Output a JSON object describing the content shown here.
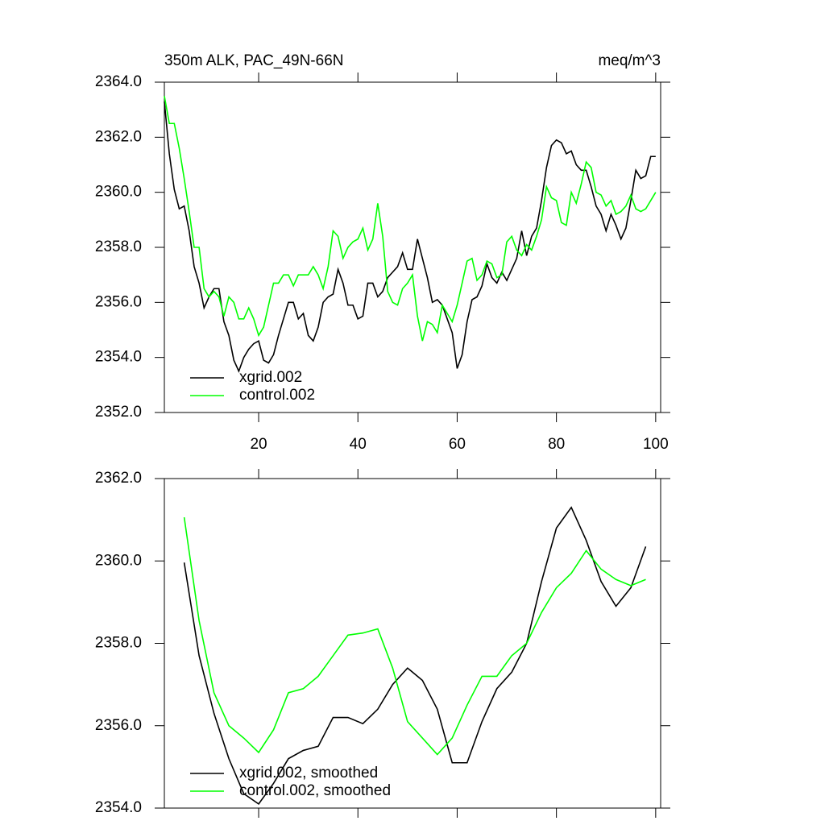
{
  "chart_data": [
    {
      "type": "line",
      "title": "350m ALK, PAC_49N-66N",
      "title_right": "meq/m^3",
      "x": [
        1,
        2,
        3,
        4,
        5,
        6,
        7,
        8,
        9,
        10,
        11,
        12,
        13,
        14,
        15,
        16,
        17,
        18,
        19,
        20,
        21,
        22,
        23,
        24,
        25,
        26,
        27,
        28,
        29,
        30,
        31,
        32,
        33,
        34,
        35,
        36,
        37,
        38,
        39,
        40,
        41,
        42,
        43,
        44,
        45,
        46,
        47,
        48,
        49,
        50,
        51,
        52,
        53,
        54,
        55,
        56,
        57,
        58,
        59,
        60,
        61,
        62,
        63,
        64,
        65,
        66,
        67,
        68,
        69,
        70,
        71,
        72,
        73,
        74,
        75,
        76,
        77,
        78,
        79,
        80,
        81,
        82,
        83,
        84,
        85,
        86,
        87,
        88,
        89,
        90,
        91,
        92,
        93,
        94,
        95,
        96,
        97,
        98,
        99,
        100
      ],
      "series": [
        {
          "name": "xgrid.002",
          "color": "#000000",
          "values": [
            2363.3,
            2361.4,
            2360.1,
            2359.4,
            2359.5,
            2358.6,
            2357.3,
            2356.7,
            2355.8,
            2356.2,
            2356.5,
            2356.5,
            2355.3,
            2354.8,
            2353.9,
            2353.5,
            2354.0,
            2354.3,
            2354.5,
            2354.6,
            2353.9,
            2353.8,
            2354.1,
            2354.8,
            2355.4,
            2356.0,
            2356.0,
            2355.4,
            2355.6,
            2354.8,
            2354.6,
            2355.1,
            2356.0,
            2356.2,
            2356.3,
            2357.2,
            2356.7,
            2355.9,
            2355.9,
            2355.4,
            2355.5,
            2356.7,
            2356.7,
            2356.2,
            2356.4,
            2356.9,
            2357.1,
            2357.3,
            2357.8,
            2357.2,
            2357.2,
            2358.3,
            2357.6,
            2356.9,
            2356.0,
            2356.1,
            2355.9,
            2355.4,
            2354.9,
            2353.6,
            2354.1,
            2355.3,
            2356.1,
            2356.2,
            2356.6,
            2357.4,
            2356.9,
            2356.7,
            2357.1,
            2356.8,
            2357.2,
            2357.6,
            2358.6,
            2357.7,
            2358.4,
            2358.7,
            2359.7,
            2360.9,
            2361.7,
            2361.9,
            2361.8,
            2361.4,
            2361.5,
            2361.0,
            2360.8,
            2360.8,
            2360.2,
            2359.5,
            2359.2,
            2358.6,
            2359.2,
            2358.8,
            2358.3,
            2358.7,
            2359.7,
            2360.8,
            2360.5,
            2360.6,
            2361.3,
            2361.3
          ]
        },
        {
          "name": "control.002",
          "color": "#00ff00",
          "values": [
            2363.5,
            2362.5,
            2362.5,
            2361.6,
            2360.5,
            2359.3,
            2358.0,
            2358.0,
            2356.5,
            2356.2,
            2356.4,
            2356.2,
            2355.5,
            2356.2,
            2356.0,
            2355.4,
            2355.4,
            2355.8,
            2355.4,
            2354.8,
            2355.1,
            2355.9,
            2356.7,
            2356.7,
            2357.0,
            2357.0,
            2356.6,
            2357.0,
            2357.0,
            2357.0,
            2357.3,
            2357.0,
            2356.5,
            2357.3,
            2358.6,
            2358.4,
            2357.6,
            2358.0,
            2358.2,
            2358.3,
            2358.7,
            2357.9,
            2358.3,
            2359.6,
            2358.4,
            2356.4,
            2356.0,
            2355.9,
            2356.5,
            2356.7,
            2357.0,
            2355.5,
            2354.6,
            2355.3,
            2355.2,
            2354.9,
            2355.9,
            2355.6,
            2355.3,
            2355.9,
            2356.7,
            2357.5,
            2357.6,
            2356.8,
            2357.0,
            2357.5,
            2357.4,
            2356.9,
            2357.0,
            2358.2,
            2358.4,
            2357.9,
            2357.7,
            2358.1,
            2357.9,
            2358.4,
            2359.0,
            2360.2,
            2359.8,
            2359.7,
            2358.9,
            2358.8,
            2360.0,
            2359.6,
            2360.3,
            2361.1,
            2360.9,
            2360.0,
            2359.9,
            2359.5,
            2359.7,
            2359.2,
            2359.3,
            2359.5,
            2359.9,
            2359.4,
            2359.3,
            2359.4,
            2359.7,
            2360.0
          ]
        }
      ],
      "xlim": [
        1,
        101
      ],
      "xticks": [
        20,
        40,
        60,
        80,
        100
      ],
      "xtick_labels": true,
      "ylim": [
        2352,
        2364
      ],
      "yticks": [
        {
          "value": 2352,
          "label": "2352.0"
        },
        {
          "value": 2354,
          "label": "2354.0"
        },
        {
          "value": 2356,
          "label": "2356.0"
        },
        {
          "value": 2358,
          "label": "2358.0"
        },
        {
          "value": 2360,
          "label": "2360.0"
        },
        {
          "value": 2362,
          "label": "2362.0"
        },
        {
          "value": 2364,
          "label": "2364.0"
        }
      ],
      "legend": "lower left"
    },
    {
      "type": "line",
      "x": [
        5,
        8,
        11,
        14,
        17,
        20,
        23,
        26,
        29,
        32,
        35,
        38,
        41,
        44,
        47,
        50,
        53,
        56,
        59,
        62,
        65,
        68,
        71,
        74,
        77,
        80,
        83,
        86,
        89,
        92,
        95,
        98
      ],
      "series": [
        {
          "name": "xgrid.002, smoothed",
          "color": "#000000",
          "values": [
            2359.96,
            2357.7,
            2356.3,
            2355.2,
            2354.35,
            2354.1,
            2354.6,
            2355.2,
            2355.4,
            2355.5,
            2356.2,
            2356.2,
            2356.05,
            2356.4,
            2357.0,
            2357.4,
            2357.1,
            2356.4,
            2355.1,
            2355.1,
            2356.1,
            2356.9,
            2357.3,
            2358.0,
            2359.5,
            2360.8,
            2361.3,
            2360.5,
            2359.5,
            2358.9,
            2359.35,
            2360.35
          ]
        },
        {
          "name": "control.002, smoothed",
          "color": "#00ff00",
          "values": [
            2361.06,
            2358.55,
            2356.8,
            2356.0,
            2355.7,
            2355.35,
            2355.9,
            2356.8,
            2356.9,
            2357.2,
            2357.7,
            2358.2,
            2358.25,
            2358.35,
            2357.4,
            2356.1,
            2355.7,
            2355.3,
            2355.7,
            2356.5,
            2357.2,
            2357.2,
            2357.7,
            2358.0,
            2358.75,
            2359.35,
            2359.7,
            2360.25,
            2359.8,
            2359.55,
            2359.4,
            2359.55
          ]
        }
      ],
      "xlim": [
        1,
        101
      ],
      "xticks": [
        20,
        40,
        60,
        80,
        100
      ],
      "xtick_labels": false,
      "ylim": [
        2354,
        2362
      ],
      "yticks": [
        {
          "value": 2354,
          "label": "2354.0"
        },
        {
          "value": 2356,
          "label": "2356.0"
        },
        {
          "value": 2358,
          "label": "2358.0"
        },
        {
          "value": 2360,
          "label": "2360.0"
        },
        {
          "value": 2362,
          "label": "2362.0"
        }
      ],
      "legend": "lower left"
    }
  ]
}
